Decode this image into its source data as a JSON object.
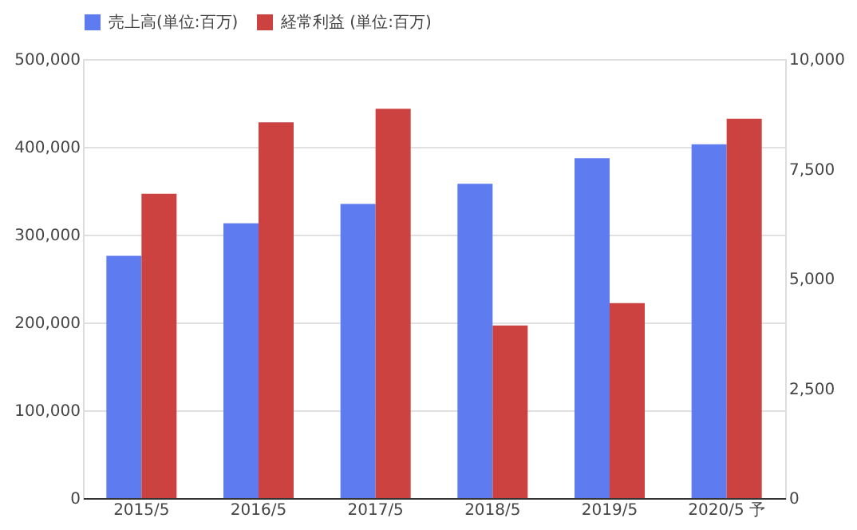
{
  "chart_data": {
    "type": "bar",
    "categories": [
      "2015/5",
      "2016/5",
      "2017/5",
      "2018/5",
      "2019/5",
      "2020/5 予"
    ],
    "series": [
      {
        "name": "売上高(単位:百万)",
        "color": "#5f7bf0",
        "values": [
          276000,
          313000,
          335000,
          358000,
          387000,
          403000
        ]
      },
      {
        "name": "経常利益 (単位:百万)",
        "color": "#cc4240",
        "axis": "y2",
        "values": [
          6930,
          8560,
          8870,
          3930,
          4440,
          8640
        ]
      }
    ],
    "ylim": [
      0,
      500000
    ],
    "yticks": [
      0,
      {
        "value": 100000,
        "label": "100,000"
      },
      {
        "value": 200000,
        "label": "200,000"
      },
      {
        "value": 300000,
        "label": "300,000"
      },
      {
        "value": 400000,
        "label": "400,000"
      },
      {
        "value": 500000,
        "label": "500,000"
      }
    ],
    "y2lim": [
      0,
      10000
    ],
    "y2ticks": [
      0,
      {
        "value": 2500,
        "label": "2,500"
      },
      {
        "value": 5000,
        "label": "5,000"
      },
      {
        "value": 7500,
        "label": "7,500"
      },
      {
        "value": 10000,
        "label": "10,000"
      }
    ],
    "grid": "y",
    "legend": "top"
  }
}
